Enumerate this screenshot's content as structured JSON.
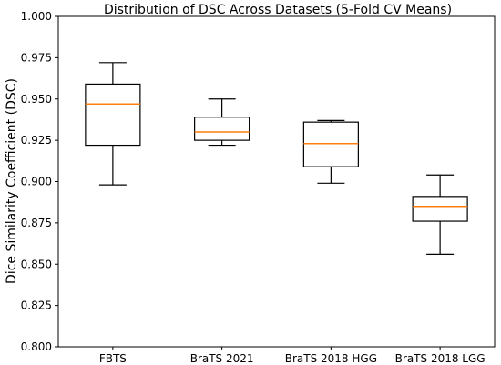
{
  "chart_data": {
    "type": "box",
    "title": "Distribution of DSC Across Datasets (5-Fold CV Means)",
    "xlabel": "",
    "ylabel": "Dice Similarity Coefficient (DSC)",
    "ylim": [
      0.8,
      1.0
    ],
    "yticks": [
      "0.800",
      "0.825",
      "0.850",
      "0.875",
      "0.900",
      "0.925",
      "0.950",
      "0.975",
      "1.000"
    ],
    "grid": false,
    "categories": [
      "FBTS",
      "BraTS 2021",
      "BraTS 2018 HGG",
      "BraTS 2018 LGG"
    ],
    "boxes": [
      {
        "category": "FBTS",
        "whisker_low": 0.898,
        "q1": 0.922,
        "median": 0.947,
        "q3": 0.959,
        "whisker_high": 0.972
      },
      {
        "category": "BraTS 2021",
        "whisker_low": 0.922,
        "q1": 0.925,
        "median": 0.93,
        "q3": 0.939,
        "whisker_high": 0.95
      },
      {
        "category": "BraTS 2018 HGG",
        "whisker_low": 0.899,
        "q1": 0.909,
        "median": 0.923,
        "q3": 0.936,
        "whisker_high": 0.937
      },
      {
        "category": "BraTS 2018 LGG",
        "whisker_low": 0.856,
        "q1": 0.876,
        "median": 0.885,
        "q3": 0.891,
        "whisker_high": 0.904
      }
    ],
    "colors": {
      "box": "#000000",
      "median": "#ff7f0e"
    }
  }
}
